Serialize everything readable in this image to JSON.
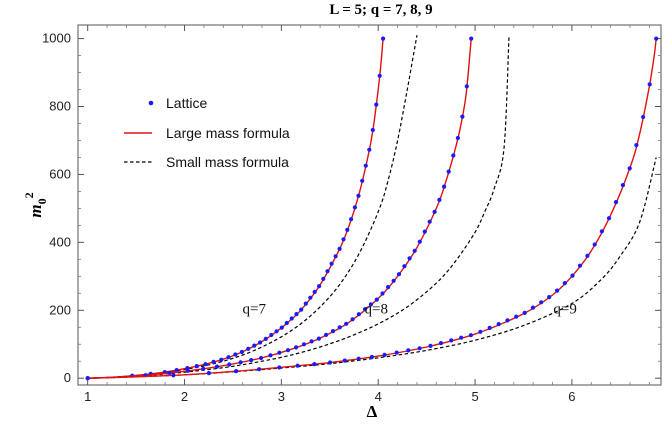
{
  "chart_data": {
    "type": "line",
    "title": "L = 5;  q = 7, 8, 9",
    "xlabel": "Δ",
    "ylabel": {
      "main": "m",
      "sub": "0",
      "sup": "2"
    },
    "xlim": [
      0.9,
      6.92
    ],
    "ylim": [
      -20,
      1040
    ],
    "x_ticks": [
      1,
      2,
      3,
      4,
      5,
      6
    ],
    "y_ticks": [
      0,
      200,
      400,
      600,
      800,
      1000
    ],
    "grid": false,
    "legend_position": "top-left",
    "legend": [
      {
        "label": "Lattice",
        "marker": "dot",
        "color": "#1a1aff"
      },
      {
        "label": "Large mass formula",
        "marker": "line",
        "color": "#e01010"
      },
      {
        "label": "Small mass formula",
        "marker": "dashed",
        "color": "#000000"
      }
    ],
    "annotations": [
      {
        "text": "q=7",
        "x": 2.72,
        "y": 190
      },
      {
        "text": "q=8",
        "x": 3.98,
        "y": 190
      },
      {
        "text": "q=9",
        "x": 5.93,
        "y": 190
      }
    ],
    "series": [
      {
        "q": 7,
        "large_mass": [
          [
            1.0,
            0
          ],
          [
            1.2,
            2
          ],
          [
            1.4,
            6
          ],
          [
            1.6,
            11
          ],
          [
            1.8,
            18
          ],
          [
            2.0,
            28
          ],
          [
            2.2,
            40
          ],
          [
            2.4,
            56
          ],
          [
            2.6,
            78
          ],
          [
            2.8,
            108
          ],
          [
            3.0,
            148
          ],
          [
            3.2,
            200
          ],
          [
            3.4,
            275
          ],
          [
            3.6,
            380
          ],
          [
            3.7,
            450
          ],
          [
            3.8,
            540
          ],
          [
            3.9,
            660
          ],
          [
            3.95,
            740
          ],
          [
            4.0,
            850
          ],
          [
            4.03,
            930
          ],
          [
            4.05,
            1000
          ]
        ],
        "small_mass": [
          [
            1.0,
            0
          ],
          [
            1.2,
            2
          ],
          [
            1.4,
            6
          ],
          [
            1.6,
            11
          ],
          [
            1.8,
            17
          ],
          [
            2.0,
            26
          ],
          [
            2.2,
            36
          ],
          [
            2.4,
            50
          ],
          [
            2.6,
            68
          ],
          [
            2.8,
            92
          ],
          [
            3.0,
            122
          ],
          [
            3.2,
            160
          ],
          [
            3.4,
            210
          ],
          [
            3.6,
            275
          ],
          [
            3.8,
            365
          ],
          [
            4.0,
            490
          ],
          [
            4.1,
            580
          ],
          [
            4.2,
            700
          ],
          [
            4.3,
            850
          ],
          [
            4.4,
            1010
          ]
        ],
        "lattice": [
          [
            1.0,
            0
          ],
          [
            1.2,
            2
          ],
          [
            1.4,
            6
          ],
          [
            1.6,
            11
          ],
          [
            1.8,
            18
          ],
          [
            2.0,
            28
          ],
          [
            2.2,
            40
          ],
          [
            2.4,
            56
          ],
          [
            2.6,
            78
          ],
          [
            2.8,
            108
          ],
          [
            3.0,
            148
          ],
          [
            3.2,
            200
          ],
          [
            3.4,
            275
          ],
          [
            3.6,
            380
          ],
          [
            3.7,
            450
          ],
          [
            3.8,
            540
          ],
          [
            3.9,
            660
          ],
          [
            3.95,
            740
          ],
          [
            4.0,
            850
          ],
          [
            4.03,
            930
          ],
          [
            4.05,
            1000
          ]
        ]
      },
      {
        "q": 8,
        "large_mass": [
          [
            1.0,
            0
          ],
          [
            1.3,
            3
          ],
          [
            1.6,
            9
          ],
          [
            1.9,
            17
          ],
          [
            2.2,
            28
          ],
          [
            2.5,
            42
          ],
          [
            2.8,
            60
          ],
          [
            3.1,
            85
          ],
          [
            3.4,
            118
          ],
          [
            3.7,
            165
          ],
          [
            4.0,
            235
          ],
          [
            4.2,
            300
          ],
          [
            4.4,
            385
          ],
          [
            4.6,
            500
          ],
          [
            4.7,
            580
          ],
          [
            4.8,
            680
          ],
          [
            4.85,
            740
          ],
          [
            4.9,
            820
          ],
          [
            4.93,
            900
          ],
          [
            4.96,
            1000
          ]
        ],
        "small_mass": [
          [
            1.0,
            0
          ],
          [
            1.3,
            3
          ],
          [
            1.6,
            8
          ],
          [
            1.9,
            15
          ],
          [
            2.2,
            24
          ],
          [
            2.5,
            35
          ],
          [
            2.8,
            50
          ],
          [
            3.1,
            68
          ],
          [
            3.4,
            92
          ],
          [
            3.7,
            122
          ],
          [
            4.0,
            160
          ],
          [
            4.3,
            210
          ],
          [
            4.6,
            280
          ],
          [
            4.8,
            345
          ],
          [
            5.0,
            430
          ],
          [
            5.1,
            490
          ],
          [
            5.2,
            560
          ],
          [
            5.3,
            680
          ],
          [
            5.35,
            1005
          ]
        ],
        "lattice": [
          [
            1.0,
            0
          ],
          [
            1.3,
            3
          ],
          [
            1.6,
            9
          ],
          [
            1.9,
            17
          ],
          [
            2.2,
            28
          ],
          [
            2.5,
            42
          ],
          [
            2.8,
            60
          ],
          [
            3.1,
            85
          ],
          [
            3.4,
            118
          ],
          [
            3.7,
            165
          ],
          [
            4.0,
            235
          ],
          [
            4.2,
            300
          ],
          [
            4.4,
            385
          ],
          [
            4.6,
            500
          ],
          [
            4.7,
            580
          ],
          [
            4.8,
            680
          ],
          [
            4.85,
            740
          ],
          [
            4.9,
            820
          ],
          [
            4.93,
            900
          ],
          [
            4.96,
            1000
          ]
        ]
      },
      {
        "q": 9,
        "large_mass": [
          [
            1.0,
            0
          ],
          [
            1.5,
            4
          ],
          [
            2.0,
            10
          ],
          [
            2.5,
            20
          ],
          [
            3.0,
            32
          ],
          [
            3.5,
            46
          ],
          [
            4.0,
            65
          ],
          [
            4.5,
            92
          ],
          [
            5.0,
            130
          ],
          [
            5.5,
            190
          ],
          [
            5.8,
            245
          ],
          [
            6.0,
            300
          ],
          [
            6.2,
            375
          ],
          [
            6.4,
            480
          ],
          [
            6.6,
            620
          ],
          [
            6.7,
            720
          ],
          [
            6.8,
            860
          ],
          [
            6.85,
            950
          ],
          [
            6.87,
            1000
          ]
        ],
        "small_mass": [
          [
            1.0,
            0
          ],
          [
            1.5,
            4
          ],
          [
            2.0,
            10
          ],
          [
            2.5,
            19
          ],
          [
            3.0,
            30
          ],
          [
            3.5,
            43
          ],
          [
            4.0,
            60
          ],
          [
            4.5,
            82
          ],
          [
            5.0,
            112
          ],
          [
            5.5,
            155
          ],
          [
            6.0,
            220
          ],
          [
            6.3,
            290
          ],
          [
            6.5,
            360
          ],
          [
            6.7,
            460
          ],
          [
            6.87,
            650
          ]
        ],
        "lattice": [
          [
            1.0,
            0
          ],
          [
            1.5,
            4
          ],
          [
            2.0,
            10
          ],
          [
            2.5,
            20
          ],
          [
            3.0,
            32
          ],
          [
            3.5,
            46
          ],
          [
            4.0,
            65
          ],
          [
            4.5,
            92
          ],
          [
            5.0,
            130
          ],
          [
            5.5,
            190
          ],
          [
            5.8,
            245
          ],
          [
            6.0,
            300
          ],
          [
            6.2,
            375
          ],
          [
            6.4,
            480
          ],
          [
            6.6,
            620
          ],
          [
            6.7,
            720
          ],
          [
            6.8,
            860
          ],
          [
            6.85,
            950
          ],
          [
            6.87,
            1000
          ]
        ]
      }
    ]
  }
}
